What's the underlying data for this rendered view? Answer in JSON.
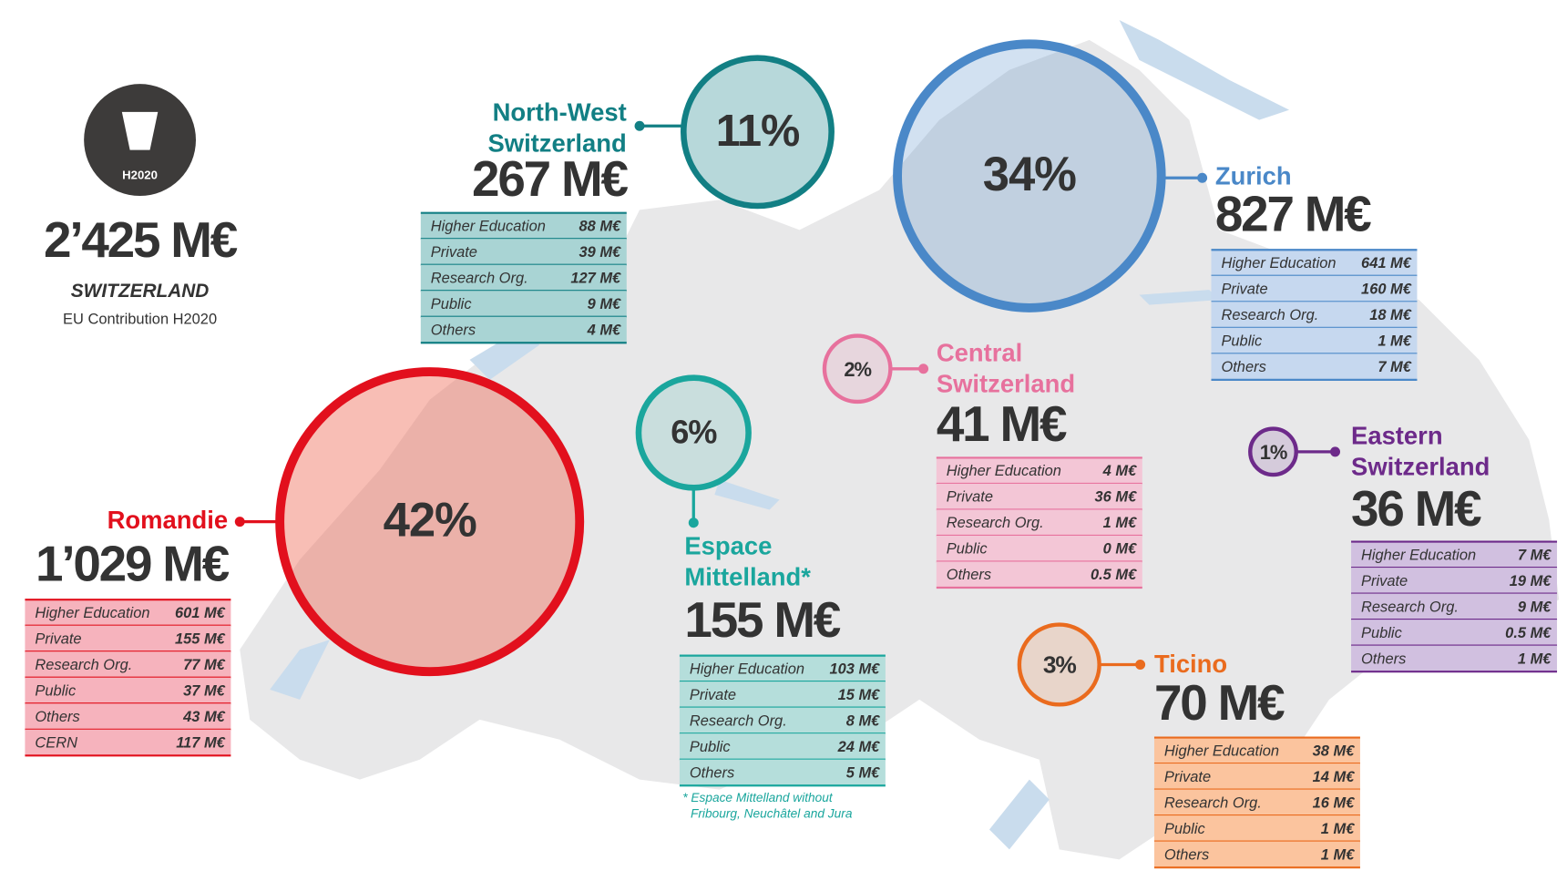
{
  "total": {
    "icon_label": "H2020",
    "amount": "2’425 M€",
    "country": "SWITZERLAND",
    "caption": "EU Contribution H2020"
  },
  "regions": [
    {
      "name": [
        "North-West",
        "Switzerland"
      ],
      "percent": "11%",
      "amount": "267 M€",
      "rows": [
        [
          "Higher Education",
          "88 M€"
        ],
        [
          "Private",
          "39 M€"
        ],
        [
          "Research Org.",
          "127 M€"
        ],
        [
          "Public",
          "9 M€"
        ],
        [
          "Others",
          "4 M€"
        ]
      ]
    },
    {
      "name": [
        "Zurich"
      ],
      "percent": "34%",
      "amount": "827 M€",
      "rows": [
        [
          "Higher Education",
          "641 M€"
        ],
        [
          "Private",
          "160 M€"
        ],
        [
          "Research Org.",
          "18 M€"
        ],
        [
          "Public",
          "1 M€"
        ],
        [
          "Others",
          "7 M€"
        ]
      ]
    },
    {
      "name": [
        "Romandie"
      ],
      "percent": "42%",
      "amount": "1’029 M€",
      "rows": [
        [
          "Higher Education",
          "601 M€"
        ],
        [
          "Private",
          "155 M€"
        ],
        [
          "Research Org.",
          "77 M€"
        ],
        [
          "Public",
          "37 M€"
        ],
        [
          "Others",
          "43 M€"
        ],
        [
          "CERN",
          "117 M€"
        ]
      ]
    },
    {
      "name": [
        "Espace",
        "Mittelland*"
      ],
      "percent": "6%",
      "amount": "155 M€",
      "rows": [
        [
          "Higher Education",
          "103 M€"
        ],
        [
          "Private",
          "15 M€"
        ],
        [
          "Research Org.",
          "8 M€"
        ],
        [
          "Public",
          "24 M€"
        ],
        [
          "Others",
          "5 M€"
        ]
      ]
    },
    {
      "name": [
        "Central",
        "Switzerland"
      ],
      "percent": "2%",
      "amount": "41 M€",
      "rows": [
        [
          "Higher Education",
          "4 M€"
        ],
        [
          "Private",
          "36 M€"
        ],
        [
          "Research Org.",
          "1 M€"
        ],
        [
          "Public",
          "0 M€"
        ],
        [
          "Others",
          "0.5 M€"
        ]
      ]
    },
    {
      "name": [
        "Eastern",
        "Switzerland"
      ],
      "percent": "1%",
      "amount": "36 M€",
      "rows": [
        [
          "Higher Education",
          "7 M€"
        ],
        [
          "Private",
          "19 M€"
        ],
        [
          "Research Org.",
          "9 M€"
        ],
        [
          "Public",
          "0.5 M€"
        ],
        [
          "Others",
          "1 M€"
        ]
      ]
    },
    {
      "name": [
        "Ticino"
      ],
      "percent": "3%",
      "amount": "70 M€",
      "rows": [
        [
          "Higher Education",
          "38 M€"
        ],
        [
          "Private",
          "14 M€"
        ],
        [
          "Research Org.",
          "16 M€"
        ],
        [
          "Public",
          "1 M€"
        ],
        [
          "Others",
          "1 M€"
        ]
      ]
    }
  ],
  "footnote": [
    "* Espace Mittelland without",
    "Fribourg, Neuchâtel and Jura"
  ]
}
